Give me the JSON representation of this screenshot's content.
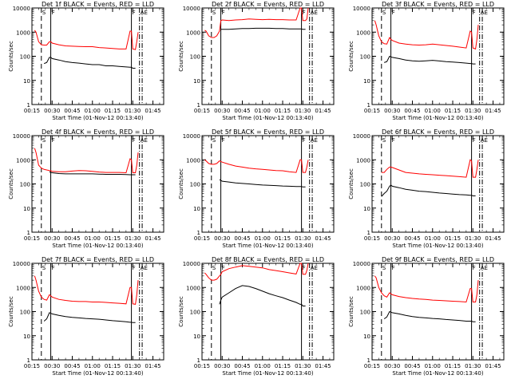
{
  "colors": {
    "events": "#000000",
    "lld": "#ff0000",
    "background": "#ffffff",
    "axes": "#000000"
  },
  "common": {
    "xlabel": "Start Time (01-Nov-12 00:13:40)",
    "ylabel": "Counts/sec",
    "xtick_labels": [
      "00:15",
      "00:30",
      "00:45",
      "01:00",
      "01:15",
      "01:30",
      "01:45"
    ],
    "ytick_labels": [
      "1",
      "10",
      "100",
      "1000",
      "10000"
    ],
    "marker_labels": [
      "S",
      "F",
      "F",
      "AE"
    ],
    "x_range_minutes": [
      15,
      113
    ],
    "y_range": [
      1,
      10000
    ],
    "y_scale": "log",
    "vertical_markers_minutes": [
      {
        "t": 22,
        "style": "dashed"
      },
      {
        "t": 29,
        "style": "solid"
      },
      {
        "t": 89,
        "style": "solid"
      },
      {
        "t": 95,
        "style": "dashdot"
      },
      {
        "t": 97,
        "style": "dashdot"
      }
    ]
  },
  "chart_data": [
    {
      "type": "line",
      "title": "Det 1f BLACK = Events, RED = LLD",
      "x_minutes": [
        17,
        18,
        20,
        22,
        24,
        26,
        28,
        29,
        30,
        35,
        40,
        45,
        50,
        55,
        60,
        65,
        70,
        75,
        80,
        85,
        88,
        89,
        90,
        92,
        93,
        94
      ],
      "series": [
        {
          "name": "LLD",
          "values": [
            1200,
            1000,
            400,
            300,
            290,
            290,
            400,
            400,
            350,
            300,
            270,
            260,
            255,
            250,
            250,
            230,
            220,
            210,
            200,
            200,
            1100,
            1100,
            200,
            190,
            400,
            1000
          ]
        },
        {
          "name": "Events",
          "values": [
            null,
            null,
            null,
            null,
            50,
            55,
            90,
            90,
            80,
            70,
            60,
            55,
            52,
            48,
            45,
            45,
            40,
            40,
            38,
            36,
            35,
            35,
            32,
            32,
            null,
            null
          ]
        }
      ]
    },
    {
      "type": "line",
      "title": "Det 2f BLACK = Events, RED = LLD",
      "x_minutes": [
        17,
        18,
        20,
        22,
        24,
        26,
        28,
        29,
        30,
        35,
        40,
        45,
        50,
        55,
        60,
        65,
        70,
        75,
        80,
        85,
        88,
        89,
        90,
        92,
        93,
        94
      ],
      "series": [
        {
          "name": "LLD",
          "values": [
            1200,
            1100,
            700,
            600,
            600,
            700,
            1100,
            3000,
            3200,
            3000,
            3200,
            3300,
            3500,
            3400,
            3300,
            3400,
            3300,
            3300,
            3200,
            3200,
            10000,
            10000,
            3000,
            3000,
            3500,
            10000
          ]
        },
        {
          "name": "Events",
          "values": [
            null,
            null,
            null,
            null,
            null,
            null,
            null,
            1300,
            1300,
            1300,
            1350,
            1400,
            1400,
            1450,
            1450,
            1450,
            1400,
            1400,
            1350,
            1350,
            1350,
            1350,
            1300,
            1300,
            null,
            null
          ]
        }
      ]
    },
    {
      "type": "line",
      "title": "Det 3f BLACK = Events, RED = LLD",
      "x_minutes": [
        17,
        18,
        20,
        22,
        24,
        26,
        28,
        29,
        30,
        35,
        40,
        45,
        50,
        55,
        60,
        65,
        70,
        75,
        80,
        85,
        88,
        89,
        90,
        92,
        93,
        94
      ],
      "series": [
        {
          "name": "LLD",
          "values": [
            3000,
            2000,
            700,
            400,
            330,
            320,
            600,
            500,
            450,
            350,
            320,
            300,
            290,
            300,
            320,
            300,
            280,
            260,
            240,
            220,
            1100,
            1000,
            220,
            200,
            500,
            2000
          ]
        },
        {
          "name": "Events",
          "values": [
            null,
            null,
            null,
            null,
            55,
            60,
            100,
            95,
            90,
            80,
            70,
            65,
            62,
            65,
            68,
            64,
            60,
            58,
            55,
            52,
            50,
            50,
            48,
            48,
            null,
            null
          ]
        }
      ]
    },
    {
      "type": "line",
      "title": "Det 4f BLACK = Events, RED = LLD",
      "x_minutes": [
        17,
        18,
        20,
        22,
        24,
        26,
        28,
        29,
        30,
        35,
        40,
        45,
        50,
        55,
        60,
        65,
        70,
        75,
        80,
        85,
        88,
        89,
        90,
        92,
        93,
        94
      ],
      "series": [
        {
          "name": "LLD",
          "values": [
            3000,
            2000,
            600,
            450,
            400,
            380,
            360,
            350,
            330,
            320,
            320,
            340,
            360,
            350,
            330,
            310,
            300,
            300,
            300,
            290,
            1100,
            1000,
            290,
            290,
            600,
            2000
          ]
        },
        {
          "name": "Events",
          "values": [
            null,
            null,
            null,
            null,
            null,
            null,
            320,
            300,
            290,
            270,
            260,
            260,
            260,
            260,
            260,
            255,
            250,
            250,
            250,
            245,
            240,
            240,
            240,
            240,
            null,
            null
          ]
        }
      ]
    },
    {
      "type": "line",
      "title": "Det 5f BLACK = Events, RED = LLD",
      "x_minutes": [
        17,
        18,
        20,
        22,
        24,
        26,
        28,
        29,
        30,
        35,
        40,
        45,
        50,
        55,
        60,
        65,
        70,
        75,
        80,
        85,
        88,
        89,
        90,
        92,
        93,
        94
      ],
      "series": [
        {
          "name": "LLD",
          "values": [
            1000,
            900,
            700,
            650,
            650,
            700,
            900,
            850,
            800,
            650,
            550,
            500,
            450,
            420,
            400,
            380,
            360,
            350,
            320,
            300,
            1000,
            1000,
            300,
            300,
            500,
            1000
          ]
        },
        {
          "name": "Events",
          "values": [
            null,
            null,
            null,
            null,
            null,
            null,
            150,
            140,
            130,
            120,
            110,
            105,
            100,
            95,
            90,
            88,
            85,
            82,
            80,
            78,
            78,
            78,
            75,
            75,
            null,
            null
          ]
        }
      ]
    },
    {
      "type": "line",
      "title": "Det 6f BLACK = Events, RED = LLD",
      "x_minutes": [
        17,
        18,
        20,
        22,
        24,
        26,
        28,
        29,
        30,
        35,
        40,
        45,
        50,
        55,
        60,
        65,
        70,
        75,
        80,
        85,
        88,
        89,
        90,
        92,
        93,
        94
      ],
      "series": [
        {
          "name": "LLD",
          "values": [
            null,
            null,
            null,
            300,
            300,
            400,
            500,
            500,
            480,
            380,
            300,
            280,
            260,
            250,
            240,
            230,
            220,
            210,
            200,
            190,
            1000,
            900,
            190,
            190,
            400,
            1000
          ]
        },
        {
          "name": "Events",
          "values": [
            null,
            null,
            null,
            30,
            40,
            50,
            80,
            90,
            80,
            70,
            60,
            55,
            50,
            48,
            45,
            42,
            40,
            38,
            36,
            35,
            34,
            34,
            32,
            32,
            null,
            null
          ]
        }
      ]
    },
    {
      "type": "line",
      "title": "Det 7f BLACK = Events, RED = LLD",
      "x_minutes": [
        17,
        18,
        20,
        22,
        24,
        26,
        28,
        29,
        30,
        35,
        40,
        45,
        50,
        55,
        60,
        65,
        70,
        75,
        80,
        85,
        88,
        89,
        90,
        92,
        93,
        94
      ],
      "series": [
        {
          "name": "LLD",
          "values": [
            3000,
            2000,
            700,
            400,
            320,
            300,
            500,
            450,
            400,
            320,
            290,
            270,
            260,
            260,
            250,
            250,
            240,
            230,
            220,
            210,
            1000,
            1000,
            210,
            200,
            500,
            2000
          ]
        },
        {
          "name": "Events",
          "values": [
            null,
            null,
            null,
            null,
            40,
            50,
            90,
            85,
            80,
            70,
            62,
            58,
            55,
            52,
            50,
            48,
            45,
            42,
            40,
            38,
            36,
            36,
            35,
            35,
            null,
            null
          ]
        }
      ]
    },
    {
      "type": "line",
      "title": "Det 8f BLACK = Events, RED = LLD",
      "x_minutes": [
        17,
        18,
        20,
        22,
        24,
        26,
        28,
        29,
        30,
        35,
        40,
        45,
        50,
        55,
        60,
        65,
        70,
        75,
        80,
        85,
        88,
        89,
        90,
        92,
        93,
        94
      ],
      "series": [
        {
          "name": "LLD",
          "values": [
            4000,
            3500,
            2500,
            2000,
            2000,
            2200,
            3000,
            3500,
            4500,
            6000,
            7000,
            8000,
            7500,
            7000,
            6500,
            5500,
            5000,
            4500,
            4000,
            3600,
            10000,
            10000,
            3500,
            3500,
            5000,
            10000
          ]
        },
        {
          "name": "Events",
          "values": [
            null,
            null,
            null,
            null,
            null,
            null,
            200,
            300,
            400,
            600,
            900,
            1200,
            1100,
            900,
            700,
            550,
            450,
            380,
            300,
            240,
            200,
            200,
            170,
            170,
            null,
            null
          ]
        }
      ]
    },
    {
      "type": "line",
      "title": "Det 9f BLACK = Events, RED = LLD",
      "x_minutes": [
        17,
        18,
        20,
        22,
        24,
        26,
        28,
        29,
        30,
        35,
        40,
        45,
        50,
        55,
        60,
        65,
        70,
        75,
        80,
        85,
        88,
        89,
        90,
        92,
        93,
        94
      ],
      "series": [
        {
          "name": "LLD",
          "values": [
            3000,
            2500,
            1000,
            600,
            450,
            400,
            600,
            550,
            500,
            420,
            380,
            350,
            330,
            320,
            300,
            290,
            280,
            270,
            260,
            250,
            900,
            900,
            250,
            250,
            500,
            2000
          ]
        },
        {
          "name": "Events",
          "values": [
            null,
            null,
            null,
            null,
            50,
            60,
            100,
            95,
            90,
            80,
            70,
            62,
            58,
            55,
            52,
            50,
            47,
            45,
            43,
            40,
            40,
            40,
            38,
            38,
            null,
            null
          ]
        }
      ]
    }
  ]
}
